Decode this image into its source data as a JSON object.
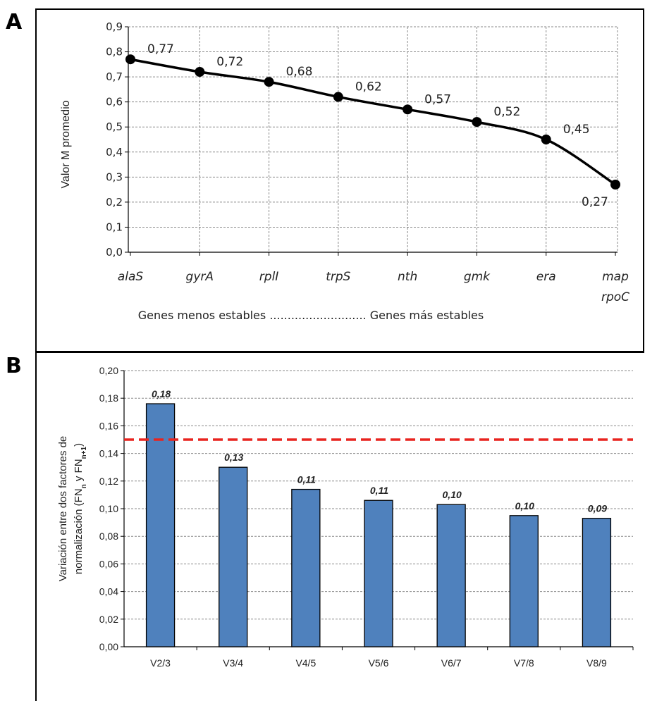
{
  "panels": {
    "A": {
      "letter": "A"
    },
    "B": {
      "letter": "B"
    }
  },
  "chart_data": [
    {
      "panel": "A",
      "type": "line",
      "categories": [
        "alaS",
        "gyrA",
        "rplI",
        "trpS",
        "nth",
        "gmk",
        "era",
        "map rpoC"
      ],
      "category_lines": [
        [
          "alaS"
        ],
        [
          "gyrA"
        ],
        [
          "rplI"
        ],
        [
          "trpS"
        ],
        [
          "nth"
        ],
        [
          "gmk"
        ],
        [
          "era"
        ],
        [
          "map",
          "rpoC"
        ]
      ],
      "values": [
        0.77,
        0.72,
        0.68,
        0.62,
        0.57,
        0.52,
        0.45,
        0.27
      ],
      "value_labels": [
        "0,77",
        "0,72",
        "0,68",
        "0,62",
        "0,57",
        "0,52",
        "0,45",
        "0,27"
      ],
      "ylabel": "Valor M promedio",
      "xlabel": "Genes menos estables ........................... Genes más estables",
      "ylim": [
        0,
        0.9
      ],
      "yticks": [
        "0,0",
        "0,1",
        "0,2",
        "0,3",
        "0,4",
        "0,5",
        "0,6",
        "0,7",
        "0,8",
        "0,9"
      ],
      "grid": true,
      "line_color": "#000000"
    },
    {
      "panel": "B",
      "type": "bar",
      "categories": [
        "V2/3",
        "V3/4",
        "V4/5",
        "V5/6",
        "V6/7",
        "V7/8",
        "V8/9"
      ],
      "values": [
        0.176,
        0.13,
        0.114,
        0.106,
        0.103,
        0.095,
        0.093
      ],
      "value_labels": [
        "0,18",
        "0,13",
        "0,11",
        "0,11",
        "0,10",
        "0,10",
        "0,09"
      ],
      "ylabel_lines": [
        "Variación entre dos factores de",
        "normalización (FN",
        "n",
        " y FN",
        "n+1",
        ")"
      ],
      "ylim": [
        0,
        0.2
      ],
      "yticks": [
        "0,00",
        "0,02",
        "0,04",
        "0,06",
        "0,08",
        "0,10",
        "0,12",
        "0,14",
        "0,16",
        "0,18",
        "0,20"
      ],
      "threshold": 0.15,
      "threshold_color": "#e8241f",
      "bar_color": "#4f81bd",
      "grid": true
    }
  ]
}
